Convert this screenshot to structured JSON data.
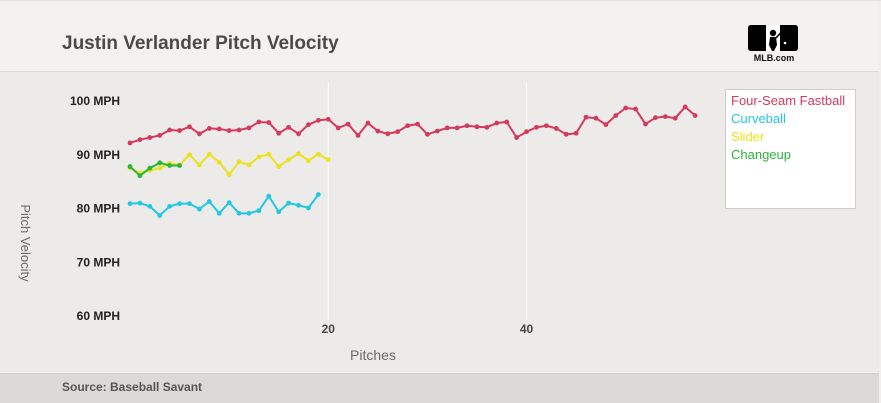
{
  "header": {
    "title": "Justin Verlander Pitch Velocity",
    "logo_text": "MLB.com",
    "logo_icon": "mlb-logo-icon"
  },
  "footer": {
    "source": "Source: Baseball Savant"
  },
  "colors": {
    "four_seam": "#d43a5b",
    "curveball": "#22c8e2",
    "slider": "#ebe31f",
    "changeup": "#2bb538",
    "grid": "#ffffff",
    "axis_text": "#222222",
    "label_text": "#6a6a6a"
  },
  "chart_data": {
    "type": "line",
    "title": "Justin Verlander Pitch Velocity",
    "xlabel": "Pitches",
    "ylabel": "Pitch Velocity",
    "xlim": [
      0,
      58
    ],
    "ylim": [
      57,
      103
    ],
    "xticks": [
      20,
      40
    ],
    "xtick_labels": [
      "20",
      "40"
    ],
    "yticks": [
      60,
      70,
      80,
      90,
      100
    ],
    "ytick_labels": [
      "60 MPH",
      "70 MPH",
      "80 MPH",
      "90 MPH",
      "100 MPH"
    ],
    "legend_position": "top-right",
    "series": [
      {
        "name": "Four-Seam Fastball",
        "color_key": "four_seam",
        "x": [
          0,
          1,
          2,
          3,
          4,
          5,
          6,
          7,
          8,
          9,
          10,
          11,
          12,
          13,
          14,
          15,
          16,
          17,
          18,
          19,
          20,
          21,
          22,
          23,
          24,
          25,
          26,
          27,
          28,
          29,
          30,
          31,
          32,
          33,
          34,
          35,
          36,
          37,
          38,
          39,
          40,
          41,
          42,
          43,
          44,
          45,
          46,
          47,
          48,
          49,
          50,
          51,
          52,
          53,
          54,
          55,
          56,
          57
        ],
        "values": [
          92.2,
          92.8,
          93.2,
          93.6,
          94.6,
          94.5,
          95.2,
          93.9,
          94.9,
          94.8,
          94.5,
          94.6,
          95.0,
          96.1,
          96.0,
          94.0,
          95.1,
          93.9,
          95.6,
          96.4,
          96.6,
          95.0,
          95.7,
          93.6,
          95.9,
          94.4,
          93.9,
          94.3,
          95.4,
          95.7,
          93.8,
          94.4,
          95.0,
          95.0,
          95.4,
          95.2,
          95.1,
          95.9,
          96.1,
          93.2,
          94.3,
          95.1,
          95.4,
          94.9,
          93.8,
          94.0,
          97.0,
          96.8,
          95.6,
          97.3,
          98.7,
          98.5,
          95.7,
          96.9,
          97.1,
          96.8,
          98.9,
          97.3
        ]
      },
      {
        "name": "Curveball",
        "color_key": "curveball",
        "x": [
          0,
          1,
          2,
          3,
          4,
          5,
          6,
          7,
          8,
          9,
          10,
          11,
          12,
          13,
          14,
          15,
          16,
          17,
          18,
          19,
          20
        ],
        "values": [
          80.9,
          81.0,
          80.4,
          78.7,
          80.4,
          80.9,
          80.9,
          79.9,
          81.3,
          79.1,
          81.1,
          79.1,
          79.1,
          79.6,
          82.3,
          79.4,
          81.0,
          80.6,
          80.1,
          82.6,
          null
        ],
        "x_override": [
          0,
          1,
          2,
          3,
          4,
          5,
          6,
          7,
          8,
          9,
          10,
          11,
          12,
          13,
          14,
          15,
          16,
          17,
          18,
          19
        ]
      },
      {
        "name": "Slider",
        "color_key": "slider",
        "x": [
          0,
          1,
          2,
          3,
          4,
          5,
          6,
          7,
          8,
          9,
          10,
          11,
          12,
          13,
          14,
          15,
          16,
          17,
          18,
          19,
          20
        ],
        "values": [
          87.5,
          86.6,
          87.1,
          87.5,
          88.4,
          88.1,
          90.0,
          88.1,
          90.1,
          88.6,
          86.3,
          88.7,
          88.1,
          89.6,
          90.1,
          87.8,
          89.1,
          90.2,
          88.9,
          90.1,
          89.1
        ]
      },
      {
        "name": "Changeup",
        "color_key": "changeup",
        "x": [
          0,
          1,
          2,
          3,
          4,
          5
        ],
        "values": [
          87.8,
          86.1,
          87.5,
          88.5,
          88.0,
          88.0
        ]
      }
    ]
  }
}
